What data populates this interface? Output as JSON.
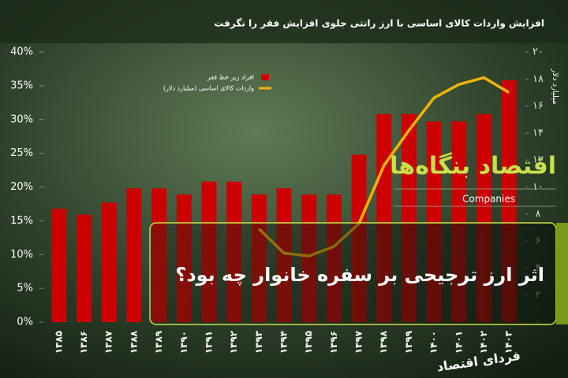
{
  "chart_data": {
    "type": "bar-line",
    "title": "افزایش واردات کالای اساسی با ارز رانتی جلوی افزایش فقر را نگرفت",
    "categories": [
      "۱۳۸۵",
      "۱۳۸۶",
      "۱۳۸۷",
      "۱۳۸۸",
      "۱۳۸۹",
      "۱۳۹۰",
      "۱۳۹۱",
      "۱۳۹۲",
      "۱۳۹۳",
      "۱۳۹۴",
      "۱۳۹۵",
      "۱۳۹۶",
      "۱۳۹۷",
      "۱۳۹۸",
      "۱۳۹۹",
      "۱۴۰۰",
      "۱۴۰۱",
      "۱۴۰۲",
      "۱۴۰۳"
    ],
    "series": [
      {
        "name": "افراد زیر خط فقر",
        "color": "#cc0000",
        "type": "bar",
        "values": [
          16.8,
          15.9,
          17.7,
          19.8,
          19.8,
          18.9,
          20.8,
          20.8,
          18.9,
          19.8,
          18.9,
          18.9,
          24.8,
          30.8,
          30.8,
          29.7,
          29.7,
          30.8,
          35.8
        ]
      },
      {
        "name": "واردات کالای اساسی (میلیارد دلار)",
        "color": "#f0b400",
        "type": "line",
        "axis": "y2",
        "values": [
          null,
          null,
          null,
          null,
          null,
          null,
          null,
          null,
          6.9,
          5.1,
          4.9,
          5.6,
          7.3,
          11.6,
          14.2,
          16.6,
          17.6,
          18.1,
          17.0
        ]
      }
    ],
    "ylim": [
      0,
      40
    ],
    "yticks": [
      {
        "value": 0,
        "label": "0%"
      },
      {
        "value": 5,
        "label": "5%"
      },
      {
        "value": 10,
        "label": "10%"
      },
      {
        "value": 15,
        "label": "15%"
      },
      {
        "value": 20,
        "label": "20%"
      },
      {
        "value": 25,
        "label": "25%"
      },
      {
        "value": 30,
        "label": "30%"
      },
      {
        "value": 35,
        "label": "35%"
      },
      {
        "value": 40,
        "label": "40%"
      }
    ],
    "y2lim": [
      0,
      20
    ],
    "y2ticks": [
      {
        "value": 0,
        "label": "۰"
      },
      {
        "value": 2,
        "label": "۲"
      },
      {
        "value": 4,
        "label": "۴"
      },
      {
        "value": 6,
        "label": "۶"
      },
      {
        "value": 8,
        "label": "۸"
      },
      {
        "value": 10,
        "label": "۱۰"
      },
      {
        "value": 12,
        "label": "۱۲"
      },
      {
        "value": 14,
        "label": "۱۴"
      },
      {
        "value": 16,
        "label": "۱۶"
      },
      {
        "value": 18,
        "label": "۱۸"
      },
      {
        "value": 20,
        "label": "۲۰"
      }
    ],
    "y2label": "میلیارد دلار"
  },
  "overlay": {
    "brand": "اقتصاد بنگاه‌ها",
    "brand_sub": "Companies",
    "headline": "اثر ارز ترجیحی بر سفره خانوار چه بود؟",
    "logo": "فردای اقتصاد"
  }
}
